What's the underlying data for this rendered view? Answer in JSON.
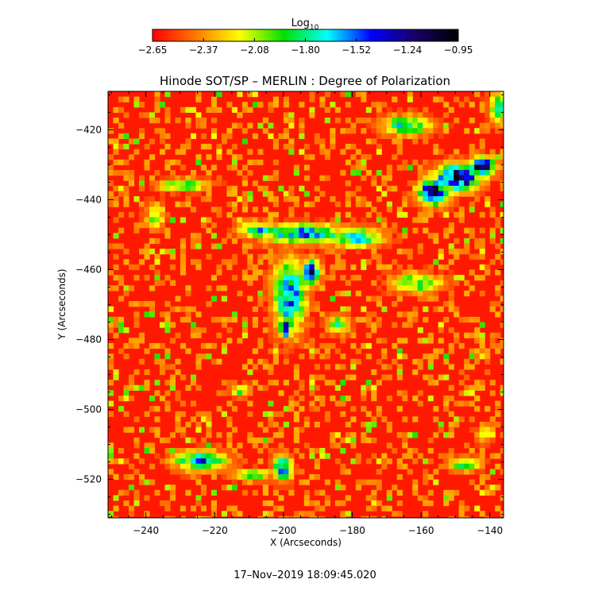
{
  "chart_data": {
    "type": "heatmap",
    "title": "Hinode SOT/SP – MERLIN : Degree of Polarization",
    "xlabel": "X (Arcseconds)",
    "ylabel": "Y (Arcseconds)",
    "xlim": [
      -251,
      -136
    ],
    "ylim": [
      -531,
      -409
    ],
    "x_ticks": [
      -240,
      -220,
      -200,
      -180,
      -160,
      -140
    ],
    "x_tick_labels": [
      "−240",
      "−220",
      "−200",
      "−180",
      "−160",
      "−140"
    ],
    "y_ticks": [
      -420,
      -440,
      -460,
      -480,
      -500,
      -520
    ],
    "y_tick_labels": [
      "−420",
      "−440",
      "−460",
      "−480",
      "−500",
      "−520"
    ],
    "colorbar": {
      "label": "Log",
      "label_sub": "10",
      "range": [
        -2.65,
        -0.95
      ],
      "tick_labels": [
        "−2.65",
        "−2.37",
        "−2.08",
        "−1.80",
        "−1.52",
        "−1.24",
        "−0.95"
      ],
      "colors": [
        "#ff0000",
        "#ff7a00",
        "#ffff00",
        "#00e000",
        "#00ffff",
        "#0000ff",
        "#1a0066",
        "#000000"
      ]
    },
    "background_level": -2.6,
    "features": [
      {
        "x": -150,
        "y": -433,
        "rx": 7,
        "ry": 4,
        "value": -1.0
      },
      {
        "x": -157,
        "y": -437,
        "rx": 5,
        "ry": 4,
        "value": -1.1
      },
      {
        "x": -143,
        "y": -430,
        "rx": 4,
        "ry": 3,
        "value": -1.0
      },
      {
        "x": -195,
        "y": -449,
        "rx": 14,
        "ry": 3,
        "value": -1.5
      },
      {
        "x": -180,
        "y": -450,
        "rx": 9,
        "ry": 3,
        "value": -1.6
      },
      {
        "x": -208,
        "y": -448,
        "rx": 6,
        "ry": 2,
        "value": -1.5
      },
      {
        "x": -199,
        "y": -467,
        "rx": 5,
        "ry": 11,
        "value": -1.4
      },
      {
        "x": -200,
        "y": -476,
        "rx": 2,
        "ry": 3,
        "value": -1.1
      },
      {
        "x": -193,
        "y": -460,
        "rx": 3,
        "ry": 4,
        "value": -1.3
      },
      {
        "x": -230,
        "y": -435,
        "rx": 8,
        "ry": 2,
        "value": -1.8
      },
      {
        "x": -238,
        "y": -444,
        "rx": 3,
        "ry": 4,
        "value": -1.9
      },
      {
        "x": -165,
        "y": -418,
        "rx": 8,
        "ry": 3,
        "value": -1.7
      },
      {
        "x": -138,
        "y": -413,
        "rx": 3,
        "ry": 5,
        "value": -1.7
      },
      {
        "x": -162,
        "y": -463,
        "rx": 8,
        "ry": 3,
        "value": -1.8
      },
      {
        "x": -225,
        "y": -514,
        "rx": 8,
        "ry": 3,
        "value": -1.5
      },
      {
        "x": -210,
        "y": -518,
        "rx": 6,
        "ry": 2,
        "value": -1.8
      },
      {
        "x": -201,
        "y": -516,
        "rx": 3,
        "ry": 4,
        "value": -1.5
      },
      {
        "x": -148,
        "y": -515,
        "rx": 5,
        "ry": 2,
        "value": -1.7
      },
      {
        "x": -213,
        "y": -494,
        "rx": 3,
        "ry": 2,
        "value": -1.9
      },
      {
        "x": -185,
        "y": -475,
        "rx": 4,
        "ry": 3,
        "value": -1.9
      },
      {
        "x": -142,
        "y": -506,
        "rx": 3,
        "ry": 3,
        "value": -2.0
      }
    ]
  },
  "timestamp": "17–Nov–2019 18:09:45.020"
}
